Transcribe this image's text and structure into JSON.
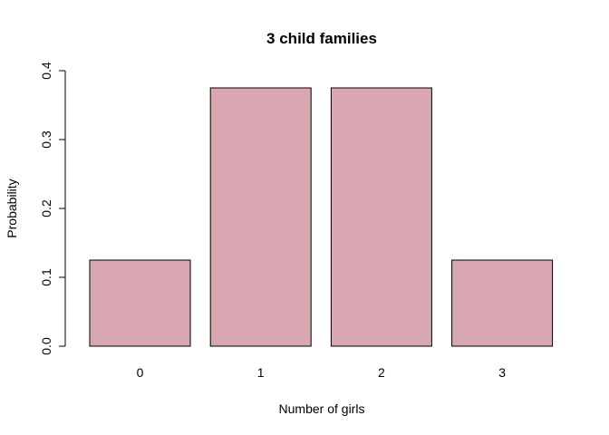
{
  "chart_data": {
    "type": "bar",
    "title": "3 child families",
    "xlabel": "Number of girls",
    "ylabel": "Probability",
    "categories": [
      "0",
      "1",
      "2",
      "3"
    ],
    "values": [
      0.125,
      0.375,
      0.375,
      0.125
    ],
    "ylim": [
      0,
      0.4
    ],
    "yticks": [
      0.0,
      0.1,
      0.2,
      0.3,
      0.4
    ],
    "ytick_labels": [
      "0.0",
      "0.1",
      "0.2",
      "0.3",
      "0.4"
    ],
    "grid": false,
    "legend": "none",
    "bar_color": "#d8a7b1",
    "bar_edge_color": "#000000"
  }
}
